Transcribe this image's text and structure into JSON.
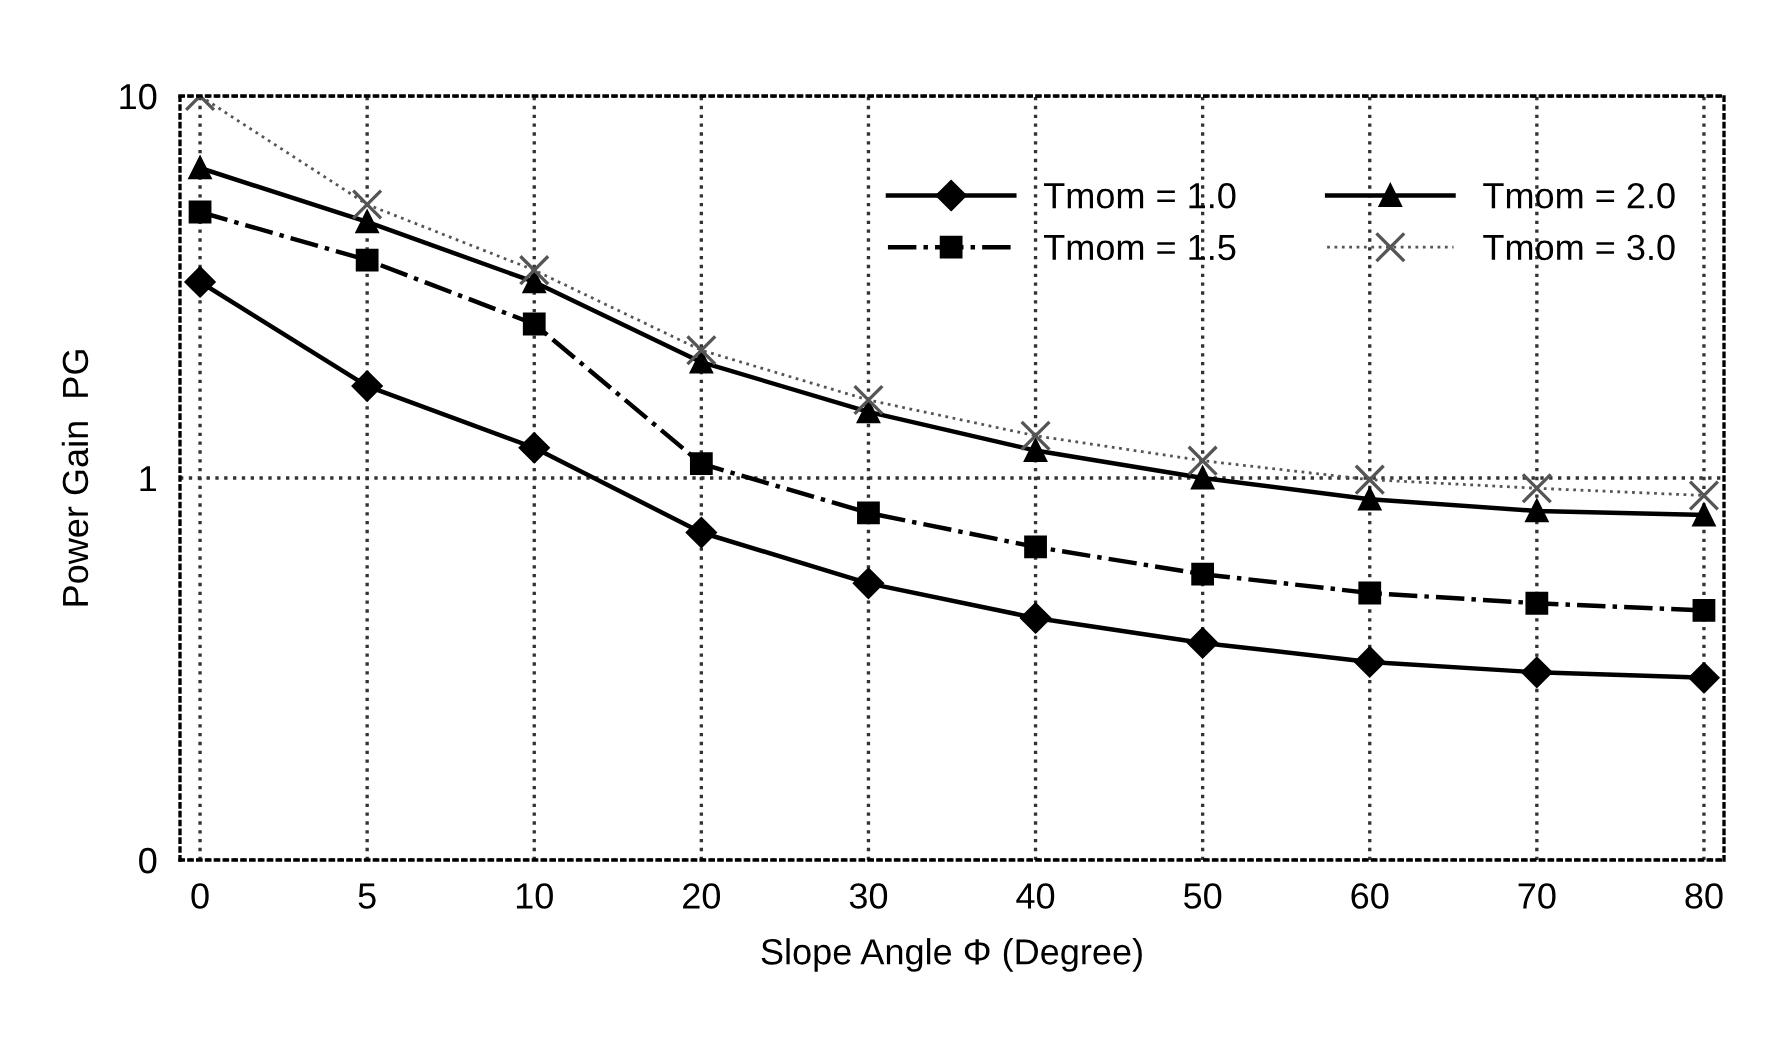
{
  "chart_data": {
    "type": "line",
    "xlabel": "Slope Angle Φ (Degree)",
    "ylabel": "Power Gain  PG",
    "categories": [
      "0",
      "5",
      "10",
      "20",
      "30",
      "40",
      "50",
      "60",
      "70",
      "80"
    ],
    "log": "y",
    "ylim": [
      0.1,
      10
    ],
    "yticks": [
      {
        "value": 0.1,
        "label": "0"
      },
      1,
      10
    ],
    "grid": true,
    "legend": "top right",
    "series": [
      {
        "name": "Tmom = 1.0",
        "color": "#000000",
        "marker": "diamond",
        "line_style": "solid",
        "values": [
          3.26,
          1.74,
          1.2,
          0.72,
          0.53,
          0.43,
          0.37,
          0.33,
          0.31,
          0.3
        ]
      },
      {
        "name": "Tmom = 1.5",
        "color": "#000000",
        "marker": "square",
        "line_style": "dashdot",
        "values": [
          4.97,
          3.72,
          2.53,
          1.09,
          0.81,
          0.66,
          0.56,
          0.5,
          0.47,
          0.45
        ]
      },
      {
        "name": "Tmom = 2.0",
        "color": "#000000",
        "marker": "triangle",
        "line_style": "solid",
        "values": [
          6.48,
          4.68,
          3.26,
          2.01,
          1.49,
          1.18,
          1.0,
          0.88,
          0.82,
          0.8
        ]
      },
      {
        "name": "Tmom = 3.0",
        "color": "#555555",
        "marker": "cross",
        "line_style": "dotted",
        "values": [
          10,
          5.2,
          3.5,
          2.16,
          1.6,
          1.29,
          1.11,
          0.99,
          0.94,
          0.9
        ]
      }
    ]
  }
}
